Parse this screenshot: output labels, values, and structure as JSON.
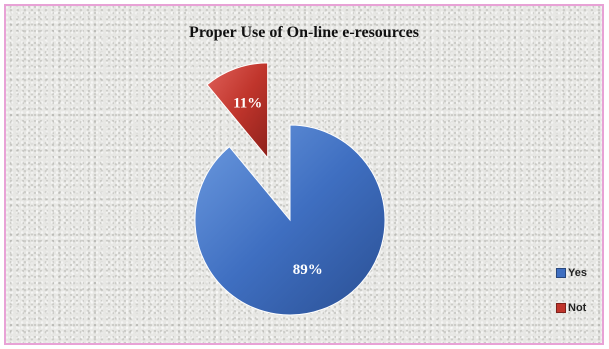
{
  "chart_data": {
    "type": "pie",
    "title": "Proper Use of On-line e-resources",
    "categories": [
      "Yes",
      "Not"
    ],
    "values": [
      89,
      11
    ],
    "labels": [
      "89%",
      "11%"
    ],
    "colors": [
      "#3f6fc1",
      "#c0352c"
    ],
    "exploded": "Not",
    "legend_position": "right-bottom"
  }
}
